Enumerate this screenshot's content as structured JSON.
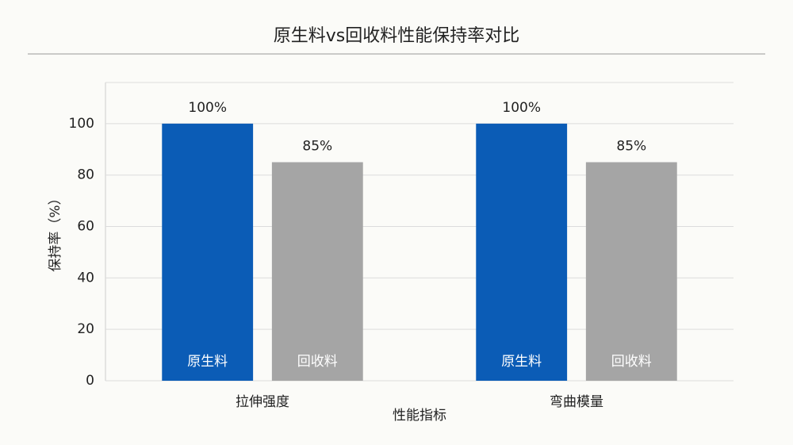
{
  "chart_data": {
    "type": "bar",
    "title": "原生料vs回收料性能保持率对比",
    "x_label": "性能指标",
    "y_label": "保持率（%）",
    "categories": [
      "拉伸强度",
      "弯曲模量"
    ],
    "series": [
      {
        "name": "原生料",
        "color": "#0b5cb6",
        "values": [
          100,
          100
        ],
        "value_labels": [
          "100%",
          "100%"
        ]
      },
      {
        "name": "回收料",
        "color": "#a5a5a5",
        "values": [
          85,
          85
        ],
        "value_labels": [
          "85%",
          "85%"
        ]
      }
    ],
    "ylim": [
      0,
      116
    ],
    "yticks": [
      0,
      20,
      40,
      60,
      80,
      100
    ],
    "grid": true
  }
}
